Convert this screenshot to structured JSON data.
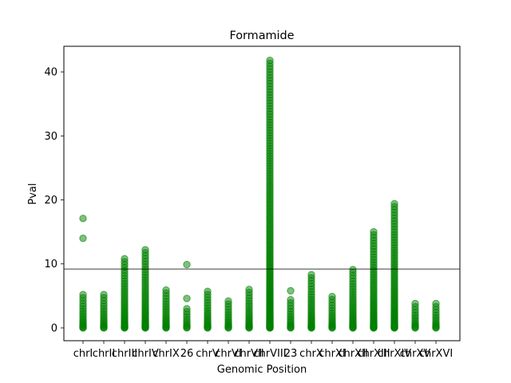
{
  "chart_data": {
    "type": "scatter",
    "title": "Formamide",
    "xlabel": "Genomic Position",
    "ylabel": "Pval",
    "ylim": [
      -2,
      44
    ],
    "yticks": [
      0,
      10,
      20,
      30,
      40
    ],
    "threshold": 9.2,
    "categories": [
      "chrI",
      "chrII",
      "chrIII",
      "chrIV",
      "chrIX",
      "26",
      "chrV",
      "chrVI",
      "chrVII",
      "chrVIII",
      "23",
      "chrX",
      "chrXI",
      "chrXII",
      "chrXIII",
      "chrXIV",
      "chrXV",
      "chrXVI"
    ],
    "grid": false,
    "point_color": "#008000",
    "columns": [
      {
        "name": "chrI",
        "max": 5.2,
        "outliers": [
          14.0,
          17.1
        ]
      },
      {
        "name": "chrII",
        "max": 5.2,
        "outliers": []
      },
      {
        "name": "chrIII",
        "max": 10.8,
        "outliers": []
      },
      {
        "name": "chrIV",
        "max": 12.2,
        "outliers": []
      },
      {
        "name": "chrIX",
        "max": 5.9,
        "outliers": []
      },
      {
        "name": "26",
        "max": 3.0,
        "outliers": [
          4.6,
          9.9
        ]
      },
      {
        "name": "chrV",
        "max": 5.7,
        "outliers": []
      },
      {
        "name": "chrVI",
        "max": 4.2,
        "outliers": []
      },
      {
        "name": "chrVII",
        "max": 6.0,
        "outliers": []
      },
      {
        "name": "chrVIII",
        "max": 41.8,
        "outliers": []
      },
      {
        "name": "23",
        "max": 4.4,
        "outliers": [
          5.8
        ]
      },
      {
        "name": "chrX",
        "max": 8.3,
        "outliers": []
      },
      {
        "name": "chrXI",
        "max": 4.9,
        "outliers": []
      },
      {
        "name": "chrXII",
        "max": 9.1,
        "outliers": []
      },
      {
        "name": "chrXIII",
        "max": 15.0,
        "outliers": []
      },
      {
        "name": "chrXIV",
        "max": 19.4,
        "outliers": []
      },
      {
        "name": "chrXV",
        "max": 3.8,
        "outliers": []
      },
      {
        "name": "chrXVI",
        "max": 3.8,
        "outliers": []
      }
    ]
  }
}
